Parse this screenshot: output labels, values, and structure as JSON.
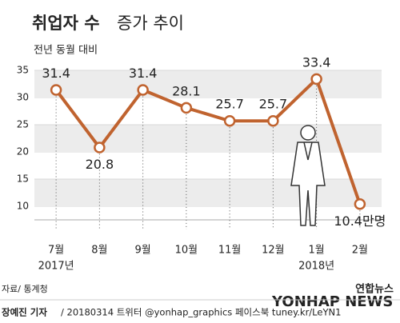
{
  "chart_data": {
    "type": "line",
    "title": "취업자 수",
    "title_rest": "증가 추이",
    "subtitle": "전년 동월 대비",
    "categories": [
      "7월",
      "8월",
      "9월",
      "10월",
      "11월",
      "12월",
      "1월",
      "2월"
    ],
    "x_sublabels": [
      "2017년",
      null,
      null,
      null,
      null,
      null,
      "2018년",
      null
    ],
    "values": [
      31.4,
      20.8,
      31.4,
      28.1,
      25.7,
      25.7,
      33.4,
      10.4
    ],
    "value_labels": [
      "31.4",
      "20.8",
      "31.4",
      "28.1",
      "25.7",
      "25.7",
      "33.4",
      "10.4만명"
    ],
    "color": "#c0632f",
    "ylim": [
      7.5,
      35
    ],
    "yticks": [
      10,
      15,
      20,
      25,
      30,
      35
    ],
    "source": "자료/ 통계청",
    "logo": "연합뉴스",
    "watermark": "YONHAP NEWS",
    "byline": "장예진 기자",
    "footer": "/ 20180314  트위터 @yonhap_graphics  페이스북 tuney.kr/LeYN1"
  }
}
